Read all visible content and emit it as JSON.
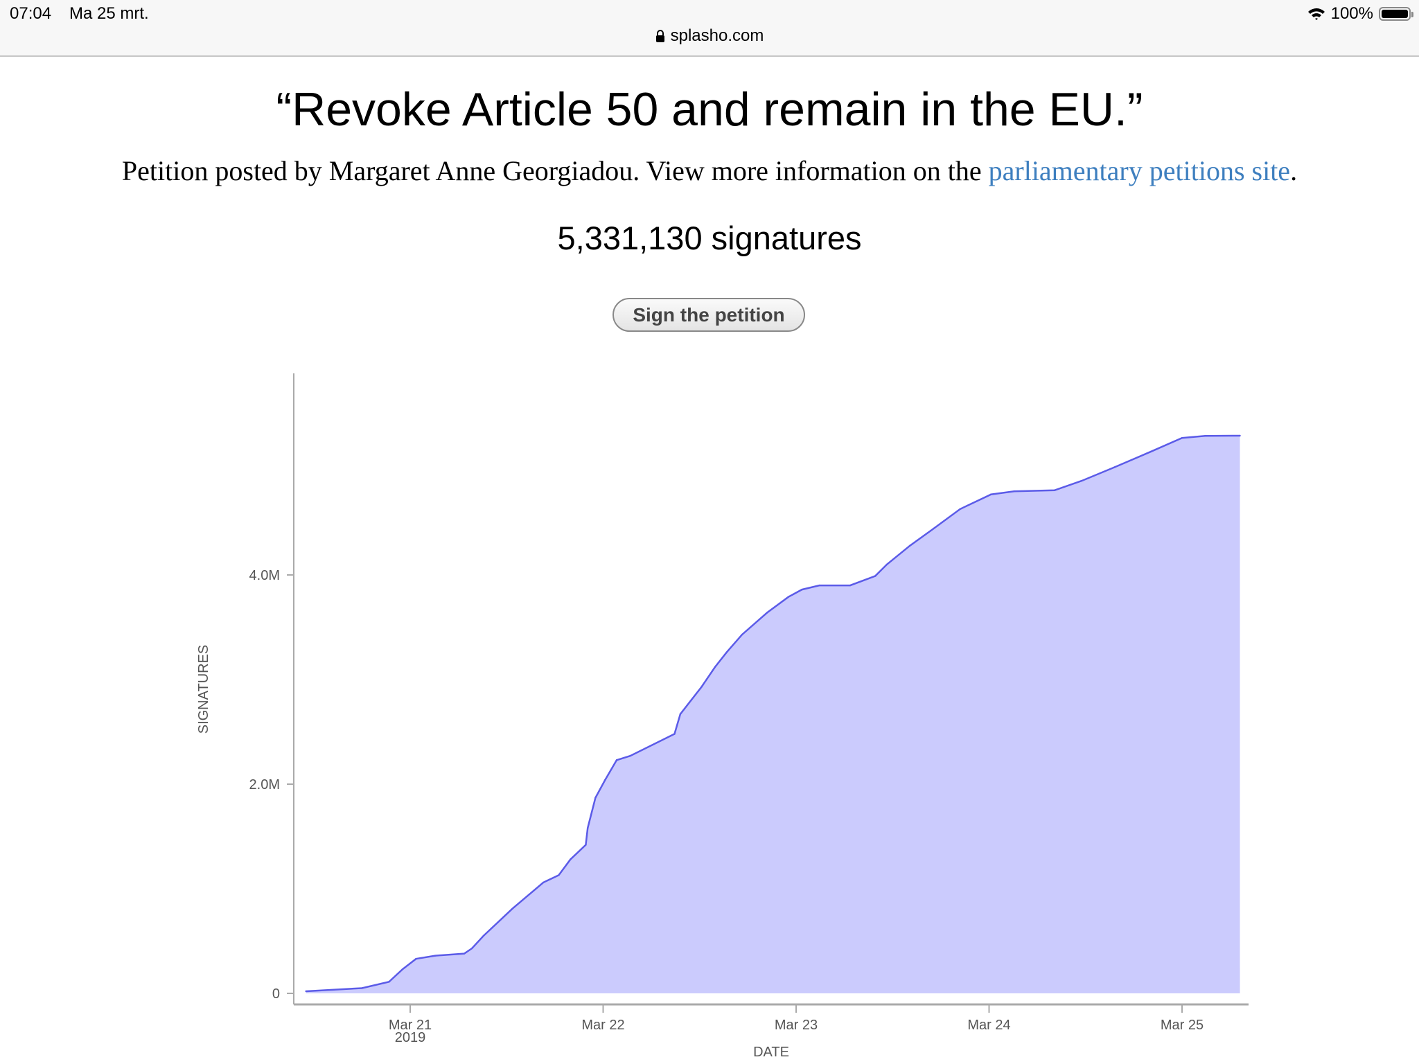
{
  "status_bar": {
    "time": "07:04",
    "date": "Ma 25 mrt.",
    "battery": "100%",
    "battery_level": 1.0
  },
  "browser": {
    "url": "splasho.com"
  },
  "page": {
    "title": "“Revoke Article 50 and remain in the EU.”",
    "subtitle_prefix": "Petition posted by Margaret Anne Georgiadou. View more information on the ",
    "subtitle_link": "parliamentary petitions site",
    "subtitle_suffix": ".",
    "signature_count": "5,331,130 signatures",
    "sign_button": "Sign the petition"
  },
  "colors": {
    "fill": "#cbcbfd",
    "line": "#5b5be8",
    "link": "#3e7fbf"
  },
  "chart_data": {
    "type": "area",
    "xlabel": "DATE",
    "ylabel": "SIGNATURES",
    "x_unit": "days since Mar 21 2019 00:00",
    "x_ticks": [
      {
        "value": 0,
        "label": "Mar 21",
        "sublabel": "2019"
      },
      {
        "value": 1,
        "label": "Mar 22"
      },
      {
        "value": 2,
        "label": "Mar 23"
      },
      {
        "value": 3,
        "label": "Mar 24"
      },
      {
        "value": 4,
        "label": "Mar 25"
      }
    ],
    "y_ticks": [
      {
        "value": 0,
        "label": "0"
      },
      {
        "value": 2000000,
        "label": "2.0M"
      },
      {
        "value": 4000000,
        "label": "4.0M"
      }
    ],
    "xlim": [
      -0.6,
      4.35
    ],
    "ylim": [
      0,
      5900000
    ],
    "x": [
      -0.54,
      -0.25,
      -0.11,
      -0.04,
      0.03,
      0.13,
      0.28,
      0.32,
      0.38,
      0.53,
      0.69,
      0.77,
      0.83,
      0.91,
      0.92,
      0.96,
      1.01,
      1.07,
      1.14,
      1.37,
      1.4,
      1.51,
      1.58,
      1.64,
      1.72,
      1.85,
      1.96,
      2.03,
      2.12,
      2.28,
      2.41,
      2.47,
      2.59,
      2.71,
      2.85,
      3.01,
      3.13,
      3.34,
      3.48,
      3.65,
      3.84,
      4.0,
      4.12,
      4.3
    ],
    "y": [
      20000,
      50000,
      110000,
      230000,
      330000,
      360000,
      380000,
      430000,
      550000,
      810000,
      1060000,
      1130000,
      1280000,
      1420000,
      1580000,
      1870000,
      2040000,
      2230000,
      2270000,
      2480000,
      2670000,
      2930000,
      3120000,
      3260000,
      3430000,
      3640000,
      3790000,
      3860000,
      3900000,
      3900000,
      3990000,
      4100000,
      4280000,
      4440000,
      4630000,
      4770000,
      4800000,
      4810000,
      4900000,
      5030000,
      5180000,
      5310000,
      5330000,
      5331130
    ]
  }
}
